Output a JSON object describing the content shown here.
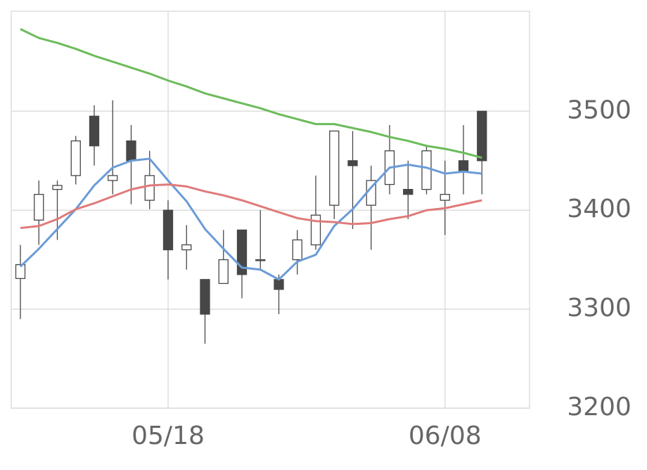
{
  "chart_data": {
    "type": "candlestick",
    "categories": [
      null,
      null,
      null,
      null,
      null,
      null,
      null,
      null,
      "05/18",
      null,
      null,
      null,
      null,
      null,
      null,
      null,
      null,
      null,
      null,
      null,
      null,
      null,
      null,
      "06/08",
      null,
      null
    ],
    "open": [
      3331,
      3390,
      3421,
      3435,
      3495,
      3430,
      3470,
      3410,
      3400,
      3360,
      3330,
      3326,
      3380,
      3349,
      3330,
      3350,
      3365,
      3405,
      3450,
      3405,
      3426,
      3421,
      3421,
      3410,
      3450,
      3500
    ],
    "high": [
      3365,
      3430,
      3430,
      3475,
      3506,
      3511,
      3486,
      3460,
      3410,
      3385,
      3330,
      3380,
      3380,
      3400,
      3335,
      3380,
      3435,
      3480,
      3480,
      3445,
      3486,
      3450,
      3465,
      3450,
      3486,
      3500
    ],
    "low": [
      3290,
      3365,
      3370,
      3426,
      3445,
      3416,
      3406,
      3401,
      3330,
      3340,
      3265,
      3326,
      3311,
      3340,
      3295,
      3335,
      3360,
      3391,
      3381,
      3360,
      3416,
      3391,
      3416,
      3375,
      3416,
      3416
    ],
    "close": [
      3345,
      3416,
      3425,
      3470,
      3465,
      3435,
      3450,
      3435,
      3360,
      3365,
      3295,
      3350,
      3335,
      3350,
      3320,
      3370,
      3395,
      3480,
      3445,
      3430,
      3460,
      3416,
      3460,
      3416,
      3440,
      3450
    ],
    "up_color": "#ffffff",
    "down_color": "#474747",
    "series": [
      {
        "color": "#6a9bd8",
        "values": [
          3343,
          3361,
          3381,
          3401,
          3425,
          3443,
          3450,
          3452,
          3430,
          3409,
          3381,
          3361,
          3342,
          3340,
          3330,
          3348,
          3355,
          3384,
          3401,
          3423,
          3443,
          3446,
          3443,
          3437,
          3439,
          3437
        ]
      },
      {
        "color": "#e07a7a",
        "values": [
          3382,
          3384,
          3391,
          3401,
          3407,
          3414,
          3421,
          3425,
          3426,
          3424,
          3419,
          3415,
          3410,
          3404,
          3398,
          3392,
          3389,
          3388,
          3386,
          3387,
          3391,
          3394,
          3400,
          3402,
          3406,
          3410
        ]
      },
      {
        "color": "#6cbb5a",
        "values": [
          3583,
          3574,
          3569,
          3563,
          3556,
          3550,
          3544,
          3538,
          3531,
          3525,
          3518,
          3513,
          3508,
          3503,
          3497,
          3492,
          3487,
          3487,
          3483,
          3479,
          3474,
          3470,
          3465,
          3462,
          3458,
          3453
        ]
      }
    ],
    "ylim": [
      3200,
      3601
    ],
    "yticks": [
      3200,
      3300,
      3400,
      3500
    ],
    "grid": true
  }
}
